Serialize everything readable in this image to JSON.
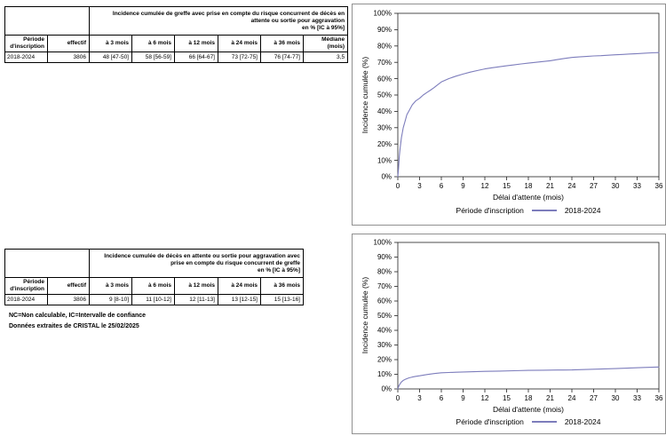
{
  "tables": {
    "greffe": {
      "header": "Incidence cumulée de greffe avec prise en compte du risque concurrent de décès en\nattente ou sortie pour aggravation\nen % [IC à 95%]",
      "columns": [
        "Période\nd'inscription",
        "effectif",
        "à 3 mois",
        "à 6 mois",
        "à 12 mois",
        "à 24 mois",
        "à 36 mois",
        "Médiane\n(mois)"
      ],
      "rows": [
        [
          "2018-2024",
          "3806",
          "48 [47-50]",
          "58 [56-59]",
          "66 [64-67]",
          "73 [72-75]",
          "76 [74-77]",
          "3,5"
        ]
      ]
    },
    "deces": {
      "header": "Incidence cumulée de décès en attente ou sortie pour aggravation avec\nprise en compte du risque concurrent de greffe\nen % [IC à 95%]",
      "columns": [
        "Période\nd'inscription",
        "effectif",
        "à 3 mois",
        "à 6 mois",
        "à 12 mois",
        "à 24 mois",
        "à 36 mois"
      ],
      "rows": [
        [
          "2018-2024",
          "3806",
          "9 [8-10]",
          "11 [10-12]",
          "12 [11-13]",
          "13 [12-15]",
          "15 [13-16]"
        ]
      ]
    }
  },
  "notes": {
    "line1": "NC=Non calculable, IC=Intervalle de confiance",
    "line2": "Données extraites de CRISTAL le 25/02/2025"
  },
  "chart_data": [
    {
      "type": "line",
      "title": "",
      "xlabel": "Délai d'attente (mois)",
      "ylabel": "Incidence cumulée (%)",
      "legend_title": "Période d'inscription",
      "legend_position": "bottom",
      "grid": false,
      "xlim": [
        0,
        36
      ],
      "ylim": [
        0,
        100
      ],
      "xticks": [
        0,
        3,
        6,
        9,
        12,
        15,
        18,
        21,
        24,
        27,
        30,
        33,
        36
      ],
      "yticks": [
        0,
        10,
        20,
        30,
        40,
        50,
        60,
        70,
        80,
        90,
        100
      ],
      "ytick_suffix": "%",
      "series": [
        {
          "name": "2018-2024",
          "color": "#7d7dbc",
          "x": [
            0,
            0.1,
            0.2,
            0.3,
            0.5,
            0.75,
            1,
            1.25,
            1.5,
            2,
            2.5,
            3,
            3.5,
            4,
            4.5,
            5,
            5.5,
            6,
            7,
            8,
            9,
            10,
            11,
            12,
            13,
            14,
            15,
            16,
            17,
            18,
            19,
            20,
            21,
            22,
            23,
            24,
            25,
            26,
            27,
            28,
            29,
            30,
            31,
            32,
            33,
            34,
            35,
            36
          ],
          "y": [
            0,
            5,
            12,
            17,
            24,
            30,
            34,
            38,
            40,
            44,
            46.5,
            48,
            50,
            51.5,
            53,
            54.5,
            56.3,
            58,
            60,
            61.5,
            62.8,
            64,
            65,
            66,
            66.7,
            67.3,
            67.9,
            68.4,
            69,
            69.5,
            70,
            70.5,
            71,
            71.7,
            72.4,
            73,
            73.3,
            73.6,
            73.9,
            74.1,
            74.35,
            74.6,
            74.85,
            75.1,
            75.35,
            75.6,
            75.8,
            76
          ]
        }
      ]
    },
    {
      "type": "line",
      "title": "",
      "xlabel": "Délai d'attente (mois)",
      "ylabel": "Incidence cumulée (%)",
      "legend_title": "Période d'inscription",
      "legend_position": "bottom",
      "grid": false,
      "xlim": [
        0,
        36
      ],
      "ylim": [
        0,
        100
      ],
      "xticks": [
        0,
        3,
        6,
        9,
        12,
        15,
        18,
        21,
        24,
        27,
        30,
        33,
        36
      ],
      "yticks": [
        0,
        10,
        20,
        30,
        40,
        50,
        60,
        70,
        80,
        90,
        100
      ],
      "ytick_suffix": "%",
      "series": [
        {
          "name": "2018-2024",
          "color": "#7d7dbc",
          "x": [
            0,
            0.1,
            0.25,
            0.5,
            0.75,
            1,
            1.5,
            2,
            2.5,
            3,
            4,
            5,
            6,
            7,
            8,
            9,
            10,
            11,
            12,
            14,
            16,
            18,
            20,
            22,
            24,
            26,
            28,
            30,
            32,
            34,
            36
          ],
          "y": [
            0,
            1.5,
            3,
            4.8,
            5.8,
            6.5,
            7.5,
            8.1,
            8.6,
            9,
            9.8,
            10.5,
            11,
            11.2,
            11.4,
            11.55,
            11.7,
            11.85,
            12,
            12.2,
            12.45,
            12.65,
            12.8,
            12.9,
            13,
            13.3,
            13.6,
            13.9,
            14.3,
            14.65,
            15
          ]
        }
      ]
    }
  ]
}
